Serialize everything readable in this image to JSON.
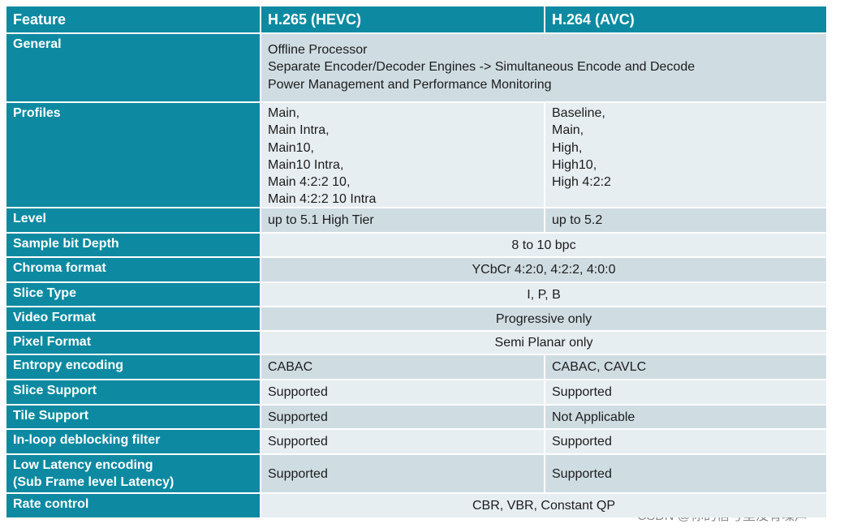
{
  "table": {
    "header": [
      "Feature",
      "H.265 (HEVC)",
      "H.264 (AVC)"
    ],
    "rows": [
      {
        "feature": [
          "General"
        ],
        "cells": [
          [
            "Offline Processor",
            "Separate Encoder/Decoder Engines -> Simultaneous Encode and Decode",
            "Power Management and Performance Monitoring"
          ]
        ]
      },
      {
        "feature": [
          "Profiles"
        ],
        "cells": [
          [
            "Main,",
            "Main Intra,",
            "Main10,",
            "Main10 Intra,",
            "Main 4:2:2 10,",
            "Main 4:2:2 10 Intra"
          ],
          [
            "Baseline,",
            "Main,",
            "High,",
            "High10,",
            "High 4:2:2"
          ]
        ]
      },
      {
        "feature": [
          "Level"
        ],
        "cells": [
          [
            "up to 5.1 High Tier"
          ],
          [
            "up to 5.2"
          ]
        ]
      },
      {
        "feature": [
          "Sample bit Depth"
        ],
        "cells": [
          [
            "8 to 10 bpc"
          ]
        ]
      },
      {
        "feature": [
          "Chroma format"
        ],
        "cells": [
          [
            "YCbCr 4:2:0, 4:2:2, 4:0:0"
          ]
        ]
      },
      {
        "feature": [
          "Slice Type"
        ],
        "cells": [
          [
            "I, P, B"
          ]
        ]
      },
      {
        "feature": [
          "Video Format"
        ],
        "cells": [
          [
            "Progressive only"
          ]
        ]
      },
      {
        "feature": [
          "Pixel Format"
        ],
        "cells": [
          [
            "Semi Planar only"
          ]
        ]
      },
      {
        "feature": [
          "Entropy encoding"
        ],
        "cells": [
          [
            "CABAC"
          ],
          [
            "CABAC, CAVLC"
          ]
        ]
      },
      {
        "feature": [
          "Slice Support"
        ],
        "cells": [
          [
            "Supported"
          ],
          [
            "Supported"
          ]
        ]
      },
      {
        "feature": [
          "Tile Support"
        ],
        "cells": [
          [
            "Supported"
          ],
          [
            "Not Applicable"
          ]
        ]
      },
      {
        "feature": [
          "In-loop deblocking filter"
        ],
        "cells": [
          [
            "Supported"
          ],
          [
            "Supported"
          ]
        ]
      },
      {
        "feature": [
          "Low Latency encoding",
          "(Sub Frame level Latency)"
        ],
        "cells": [
          [
            "Supported"
          ],
          [
            "Supported"
          ]
        ]
      },
      {
        "feature": [
          "Rate control"
        ],
        "cells": [
          [
            "CBR, VBR, Constant QP"
          ]
        ]
      }
    ]
  },
  "watermark": "CSDN @你的信号里没有噪声"
}
